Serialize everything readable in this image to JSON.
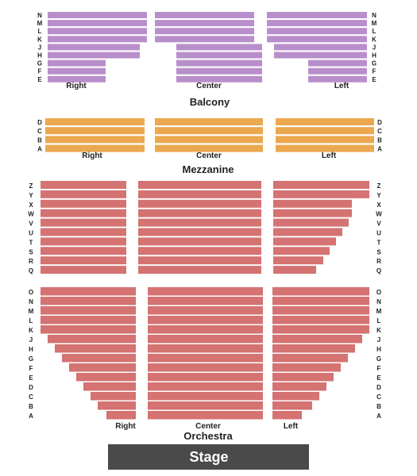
{
  "colors": {
    "balcony": "#b88fca",
    "mezzanine": "#eca84f",
    "orchestra": "#d57272",
    "stage": "#4a4a4a",
    "stage_text": "#ffffff",
    "text": "#222222"
  },
  "stage": {
    "label": "Stage"
  },
  "balcony": {
    "label": "Balcony",
    "rows": [
      "N",
      "M",
      "L",
      "K",
      "J",
      "H",
      "G",
      "F",
      "E"
    ],
    "sections": {
      "right": "Right",
      "center": "Center",
      "left": "Left"
    }
  },
  "mezzanine": {
    "label": "Mezzanine",
    "rows": [
      "D",
      "C",
      "B",
      "A"
    ],
    "sections": {
      "right": "Right",
      "center": "Center",
      "left": "Left"
    }
  },
  "orchestra_upper": {
    "rows": [
      "Z",
      "Y",
      "X",
      "W",
      "V",
      "U",
      "T",
      "S",
      "R",
      "Q"
    ]
  },
  "orchestra": {
    "label": "Orchestra",
    "rows": [
      "O",
      "N",
      "M",
      "L",
      "K",
      "J",
      "H",
      "G",
      "F",
      "E",
      "D",
      "C",
      "B",
      "A"
    ],
    "sections": {
      "right": "Right",
      "center": "Center",
      "left": "Left"
    }
  }
}
